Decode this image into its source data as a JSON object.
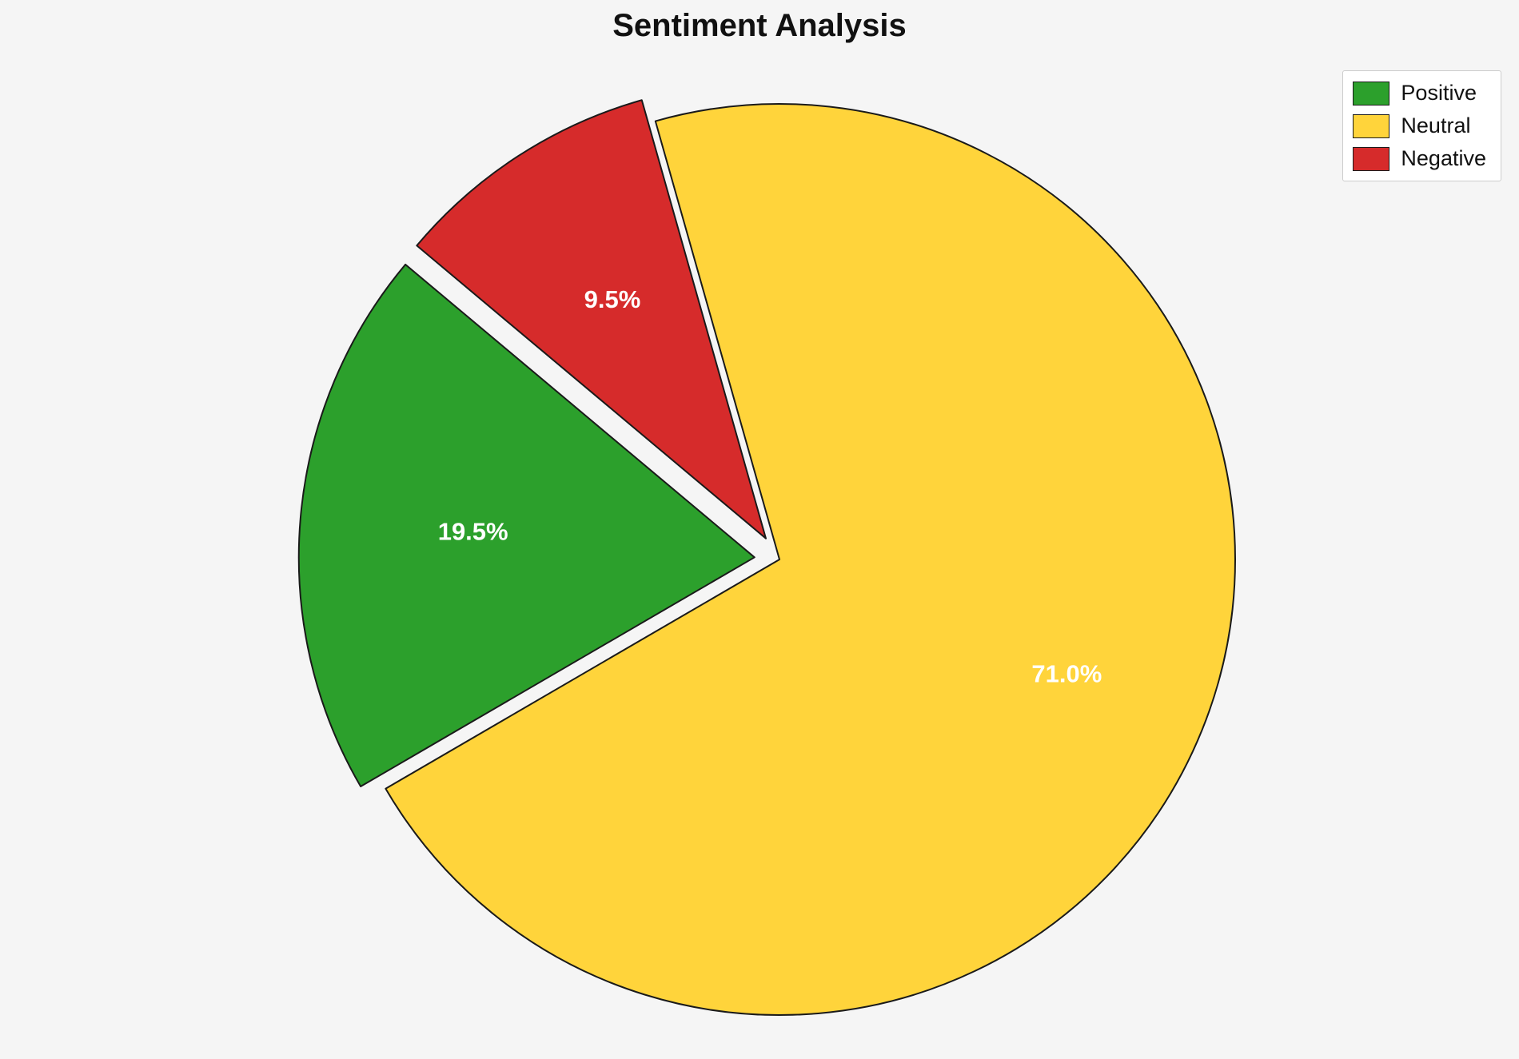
{
  "title": "Sentiment Analysis",
  "background_color": "#f5f5f5",
  "chart_data": {
    "type": "pie",
    "title": "Sentiment Analysis",
    "labels": [
      "Positive",
      "Neutral",
      "Negative"
    ],
    "values": [
      19.5,
      71.0,
      9.5
    ],
    "slice_labels": [
      "19.5%",
      "71.0%",
      "9.5%"
    ],
    "colors": [
      "#2ca02c",
      "#ffd43b",
      "#d62b2b"
    ],
    "explode": [
      0.055,
      0,
      0.055
    ],
    "label_radius": [
      0.62,
      0.68,
      0.62
    ],
    "start_angle_deg": 140,
    "direction": "counterclockwise",
    "edge_color": "#1a1a1a",
    "label_text_color": "#ffffff",
    "legend_position": "upper right"
  },
  "legend": {
    "items": [
      {
        "label": "Positive",
        "color": "#2ca02c"
      },
      {
        "label": "Neutral",
        "color": "#ffd43b"
      },
      {
        "label": "Negative",
        "color": "#d62b2b"
      }
    ]
  }
}
